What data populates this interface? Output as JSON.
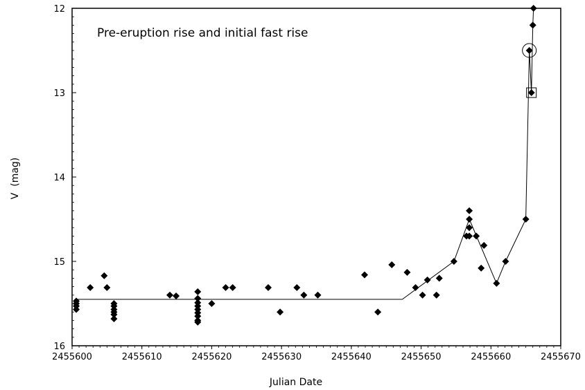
{
  "chart_data": {
    "type": "scatter",
    "title": "",
    "annotation": "Pre-eruption rise and initial fast rise",
    "xlabel": "Julian Date",
    "ylabel": "V  (mag)",
    "xlim": [
      2455600,
      2455670
    ],
    "ylim": [
      12,
      16
    ],
    "y_inverted": true,
    "xticks": [
      2455600,
      2455610,
      2455620,
      2455630,
      2455640,
      2455650,
      2455660,
      2455670
    ],
    "yticks": [
      12,
      13,
      14,
      15,
      16
    ],
    "grid": false,
    "marker": "diamond",
    "color": "#000000",
    "series": [
      {
        "points": [
          [
            2455600.6,
            15.47
          ],
          [
            2455600.6,
            15.5
          ],
          [
            2455600.6,
            15.53
          ],
          [
            2455600.6,
            15.57
          ],
          [
            2455602.6,
            15.31
          ],
          [
            2455604.6,
            15.17
          ],
          [
            2455605.0,
            15.31
          ],
          [
            2455606.0,
            15.5
          ],
          [
            2455606.0,
            15.53
          ],
          [
            2455606.0,
            15.57
          ],
          [
            2455606.0,
            15.6
          ],
          [
            2455606.0,
            15.63
          ],
          [
            2455606.0,
            15.68
          ],
          [
            2455614.0,
            15.4
          ],
          [
            2455614.9,
            15.41
          ],
          [
            2455618.0,
            15.36
          ],
          [
            2455618.0,
            15.44
          ],
          [
            2455618.0,
            15.49
          ],
          [
            2455618.0,
            15.53
          ],
          [
            2455618.0,
            15.57
          ],
          [
            2455618.0,
            15.61
          ],
          [
            2455618.0,
            15.65
          ],
          [
            2455618.0,
            15.7
          ],
          [
            2455618.0,
            15.72
          ],
          [
            2455620.0,
            15.5
          ],
          [
            2455622.0,
            15.31
          ],
          [
            2455623.0,
            15.31
          ],
          [
            2455628.1,
            15.31
          ],
          [
            2455629.8,
            15.6
          ],
          [
            2455632.2,
            15.31
          ],
          [
            2455633.2,
            15.4
          ],
          [
            2455635.2,
            15.4
          ],
          [
            2455641.9,
            15.16
          ],
          [
            2455643.8,
            15.6
          ],
          [
            2455645.8,
            15.04
          ],
          [
            2455648.0,
            15.13
          ],
          [
            2455649.2,
            15.31
          ],
          [
            2455650.2,
            15.4
          ],
          [
            2455650.9,
            15.22
          ],
          [
            2455652.2,
            15.4
          ],
          [
            2455652.6,
            15.2
          ],
          [
            2455654.7,
            15.0
          ],
          [
            2455656.5,
            14.7
          ],
          [
            2455656.9,
            14.4
          ],
          [
            2455656.9,
            14.5
          ],
          [
            2455656.9,
            14.6
          ],
          [
            2455656.9,
            14.7
          ],
          [
            2455657.9,
            14.7
          ],
          [
            2455658.6,
            15.08
          ],
          [
            2455659.0,
            14.81
          ],
          [
            2455660.8,
            15.26
          ],
          [
            2455662.1,
            15.0
          ],
          [
            2455665.0,
            14.5
          ],
          [
            2455665.5,
            12.5
          ],
          [
            2455665.8,
            13.0
          ],
          [
            2455666.0,
            12.2
          ],
          [
            2455666.1,
            12.0
          ]
        ]
      }
    ],
    "trend_line": [
      [
        2455600.6,
        15.45
      ],
      [
        2455647.3,
        15.45
      ],
      [
        2455654.7,
        15.0
      ],
      [
        2455656.9,
        14.5
      ],
      [
        2455660.8,
        15.26
      ],
      [
        2455662.1,
        15.0
      ],
      [
        2455665.0,
        14.5
      ],
      [
        2455665.5,
        12.5
      ],
      [
        2455665.8,
        13.0
      ],
      [
        2455666.0,
        12.2
      ],
      [
        2455666.1,
        12.0
      ]
    ],
    "circled_point": [
      2455665.5,
      12.5
    ],
    "boxed_point": [
      2455665.8,
      13.0
    ]
  }
}
